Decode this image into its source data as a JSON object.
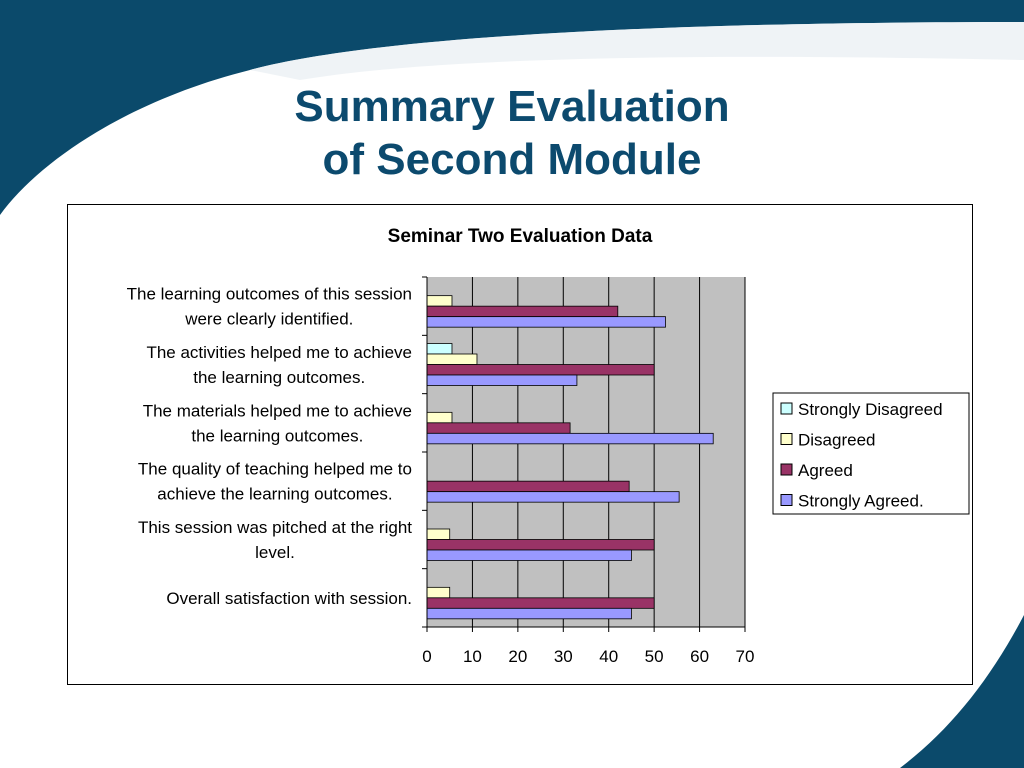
{
  "slide": {
    "title_line1": "Summary Evaluation",
    "title_line2": "of Second Module"
  },
  "colors": {
    "title": "#0c4a6e",
    "band_dark": "#0b4a6b",
    "plot_bg": "#c0c0c0",
    "strongly_disagreed": "#ccffff",
    "disagreed": "#ffffcc",
    "agreed": "#993366",
    "strongly_agreed": "#9999ff"
  },
  "chart_data": {
    "type": "bar",
    "orientation": "horizontal",
    "title": "Seminar Two Evaluation Data",
    "xlabel": "",
    "ylabel": "",
    "xlim": [
      0,
      70
    ],
    "xticks": [
      0,
      10,
      20,
      30,
      40,
      50,
      60,
      70
    ],
    "grid": true,
    "legend_position": "right",
    "categories": [
      [
        "The learning outcomes of this session",
        "were clearly identified."
      ],
      [
        "The activities helped me to achieve",
        "the learning outcomes."
      ],
      [
        "The materials helped me to achieve",
        "the learning outcomes."
      ],
      [
        "The quality of teaching helped me to",
        "achieve the learning outcomes."
      ],
      [
        "This session was pitched at the right",
        "level."
      ],
      [
        "Overall satisfaction with session."
      ]
    ],
    "series": [
      {
        "name": "Strongly Disagreed",
        "color": "#ccffff",
        "values": [
          0,
          5.5,
          0,
          0,
          0,
          0
        ]
      },
      {
        "name": "Disagreed",
        "color": "#ffffcc",
        "values": [
          5.5,
          11,
          5.5,
          0,
          5,
          5
        ]
      },
      {
        "name": "Agreed",
        "color": "#993366",
        "values": [
          42,
          50,
          31.5,
          44.5,
          50,
          50
        ]
      },
      {
        "name": "Strongly Agreed.",
        "color": "#9999ff",
        "values": [
          52.5,
          33,
          63,
          55.5,
          45,
          45
        ]
      }
    ]
  }
}
